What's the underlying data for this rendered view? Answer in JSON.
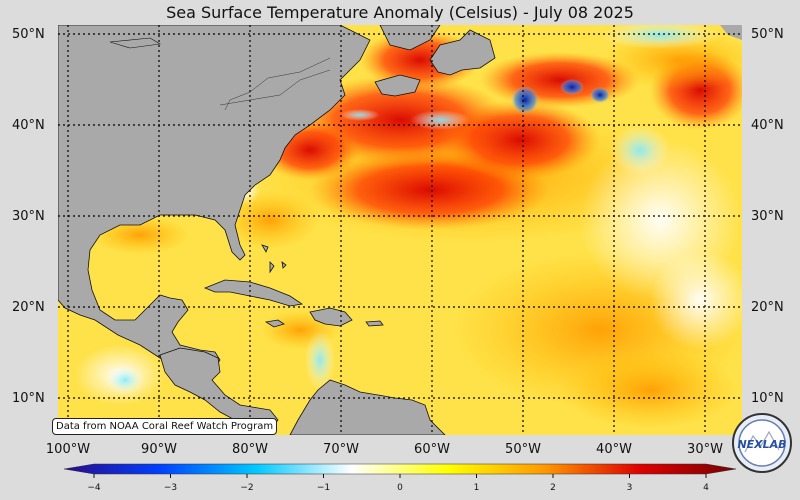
{
  "title": "Sea Surface Temperature Anomaly (Celsius) - July 08 2025",
  "lat_labels": [
    "50°N",
    "40°N",
    "30°N",
    "20°N",
    "10°N"
  ],
  "lon_labels": [
    "100°W",
    "90°W",
    "80°W",
    "70°W",
    "60°W",
    "50°W",
    "40°W",
    "30°W"
  ],
  "credit": "Data from NOAA Coral Reef Watch Program",
  "colorbar": {
    "ticks": [
      "−4",
      "−3",
      "−2",
      "−1",
      "0",
      "1",
      "2",
      "3",
      "4"
    ],
    "min": -4,
    "max": 4,
    "colors": [
      "#2a0a8a",
      "#0040ff",
      "#00c8ff",
      "#ffffff",
      "#ffff00",
      "#ff9900",
      "#dd0000",
      "#7a0000"
    ]
  },
  "logo_text": "NEXLAB",
  "colors": {
    "land": "#a9a9a9",
    "background": "#dcdcdc"
  }
}
